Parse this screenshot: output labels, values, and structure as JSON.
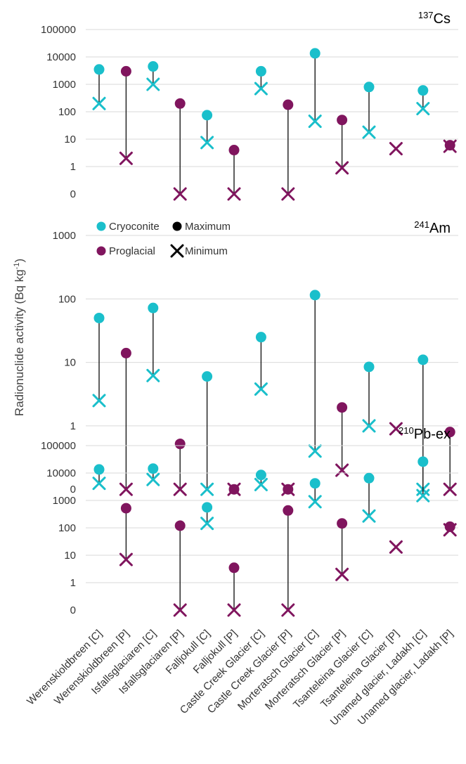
{
  "colors": {
    "cryoconite": "#1ABFCB",
    "proglacial": "#80155E",
    "stem": "#1a1a1a",
    "grid": "#d9d9d9"
  },
  "chart_data": {
    "type": "scatter",
    "ylabel": "Radionuclide activity (Bq kg-1)",
    "categories": [
      "Werenskioldbreen [C]",
      "Werenskioldbreen [P]",
      "Isfallsglaciaren [C]",
      "Isfallsglaciaren [P]",
      "Falljokull [C]",
      "Falljokull [P]",
      "Castle Creek Glacier [C]",
      "Castle Creek Glacier [P]",
      "Morteratsch Glacier [C]",
      "Morteratsch Glacier [P]",
      "Tsanteleina Glacier [C]",
      "Tsanteleina Glacier [P]",
      "Unamed glacier, Ladakh [C]",
      "Unamed glacier, Ladakh [P]"
    ],
    "types": [
      "C",
      "P",
      "C",
      "P",
      "C",
      "P",
      "C",
      "P",
      "C",
      "P",
      "C",
      "P",
      "C",
      "P"
    ],
    "legend": [
      {
        "label": "Cryoconite",
        "symbol": "circle",
        "color": "#1ABFCB"
      },
      {
        "label": "Maximum",
        "symbol": "circle",
        "color": "#000000"
      },
      {
        "label": "Proglacial",
        "symbol": "circle",
        "color": "#80155E"
      },
      {
        "label": "Minimum",
        "symbol": "cross",
        "color": "#000000"
      }
    ],
    "legend_position": "upper-left of middle panel",
    "scale": "log",
    "panels": [
      {
        "title_sup": "137",
        "title_main": "Cs",
        "ticks": [
          "100000",
          "10000",
          "1000",
          "100",
          "10",
          "1",
          "0"
        ],
        "ylim": [
          0,
          100000
        ],
        "max": [
          3500,
          3000,
          4500,
          200,
          75,
          4,
          3000,
          180,
          13500,
          50,
          800,
          null,
          600,
          6
        ],
        "min": [
          200,
          2,
          1000,
          0,
          7.5,
          0,
          700,
          0,
          45,
          0.9,
          18,
          4.5,
          130,
          5.5
        ]
      },
      {
        "title_sup": "241",
        "title_main": "Am",
        "ticks": [
          "1000",
          "100",
          "10",
          "1",
          "0"
        ],
        "ylim": [
          0,
          1000
        ],
        "max": [
          50,
          14,
          72,
          0.52,
          6,
          0,
          25,
          0,
          115,
          1.95,
          8.5,
          null,
          11,
          0.8
        ],
        "min": [
          2.5,
          0,
          6.2,
          0,
          0,
          0,
          3.8,
          0,
          0.4,
          0.2,
          1.0,
          0.9,
          0,
          0
        ]
      },
      {
        "title_sup": "210",
        "title_main": "Pb-ex",
        "ticks": [
          "100000",
          "10000",
          "1000",
          "100",
          "10",
          "1",
          "0"
        ],
        "ylim": [
          0,
          100000
        ],
        "max": [
          13500,
          520,
          14500,
          120,
          560,
          3.5,
          8500,
          430,
          4200,
          145,
          6500,
          null,
          26000,
          110
        ],
        "min": [
          4200,
          7,
          5800,
          0,
          145,
          0,
          3800,
          0,
          900,
          2,
          270,
          20,
          1500,
          85
        ]
      }
    ]
  }
}
